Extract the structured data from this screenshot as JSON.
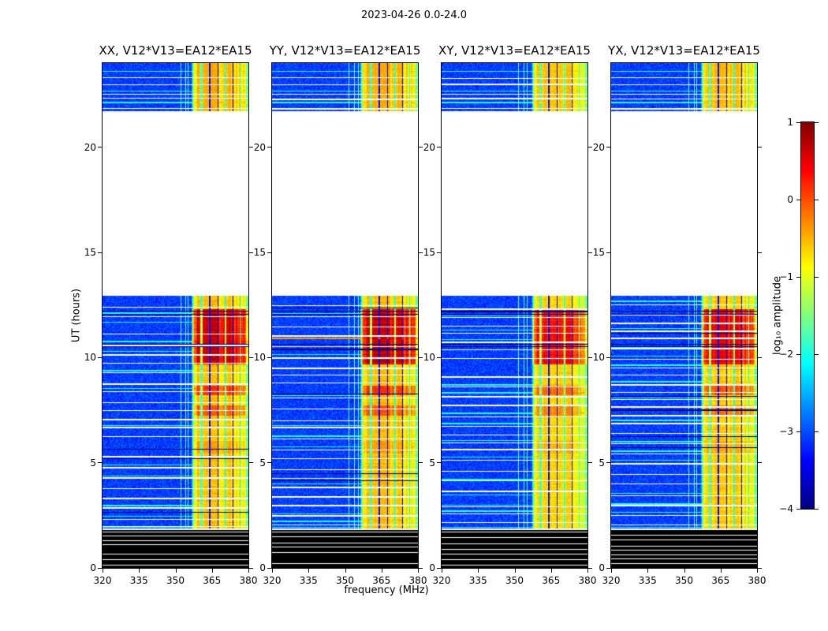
{
  "figure": {
    "title": "2023-04-26 0.0-24.0",
    "xlabel": "frequency (MHz)",
    "ylabel": "UT (hours)",
    "colorbar_label": "log₁₀ amplitude"
  },
  "chart_data": {
    "type": "heatmap",
    "title": "2023-04-26 0.0-24.0",
    "xlabel": "frequency (MHz)",
    "ylabel": "UT (hours)",
    "panels": [
      {
        "title": "XX, V12*V13=EA12*EA15"
      },
      {
        "title": "YY, V12*V13=EA12*EA15"
      },
      {
        "title": "XY, V12*V13=EA12*EA15"
      },
      {
        "title": "YX, V12*V13=EA12*EA15"
      }
    ],
    "x_range_mhz": [
      320,
      380
    ],
    "x_ticks": [
      320,
      335,
      350,
      365,
      380
    ],
    "y_range_hours": [
      0,
      24
    ],
    "y_ticks": [
      0,
      5,
      10,
      15,
      20
    ],
    "colormap": "jet",
    "colorbar": {
      "label": "log₁₀ amplitude",
      "range": [
        -4,
        1
      ],
      "tick_labels": [
        "1",
        "0",
        "−1",
        "−2",
        "−3",
        "−4"
      ],
      "stops_top_to_bottom": [
        {
          "color": "#7f0000",
          "pos": 0
        },
        {
          "color": "#ff0000",
          "pos": 12.5
        },
        {
          "color": "#ffff00",
          "pos": 37.5
        },
        {
          "color": "#00ffff",
          "pos": 62.5
        },
        {
          "color": "#0000ff",
          "pos": 87.5
        },
        {
          "color": "#00007f",
          "pos": 100
        }
      ]
    },
    "features": {
      "background_level_log10": -3.3,
      "rfi_band_mhz": [
        357.5,
        380
      ],
      "rfi_typical_level_log10": -0.6,
      "rfi_peak_level_log10": 1,
      "intense_interval_hours": [
        9.7,
        12.3
      ],
      "data_intervals_hours": [
        [
          1.8,
          12.92
        ],
        [
          21.72,
          24
        ]
      ],
      "no_data_interval_hours": [
        12.92,
        21.72
      ],
      "black_interval_hours": [
        0,
        1.8
      ]
    }
  }
}
